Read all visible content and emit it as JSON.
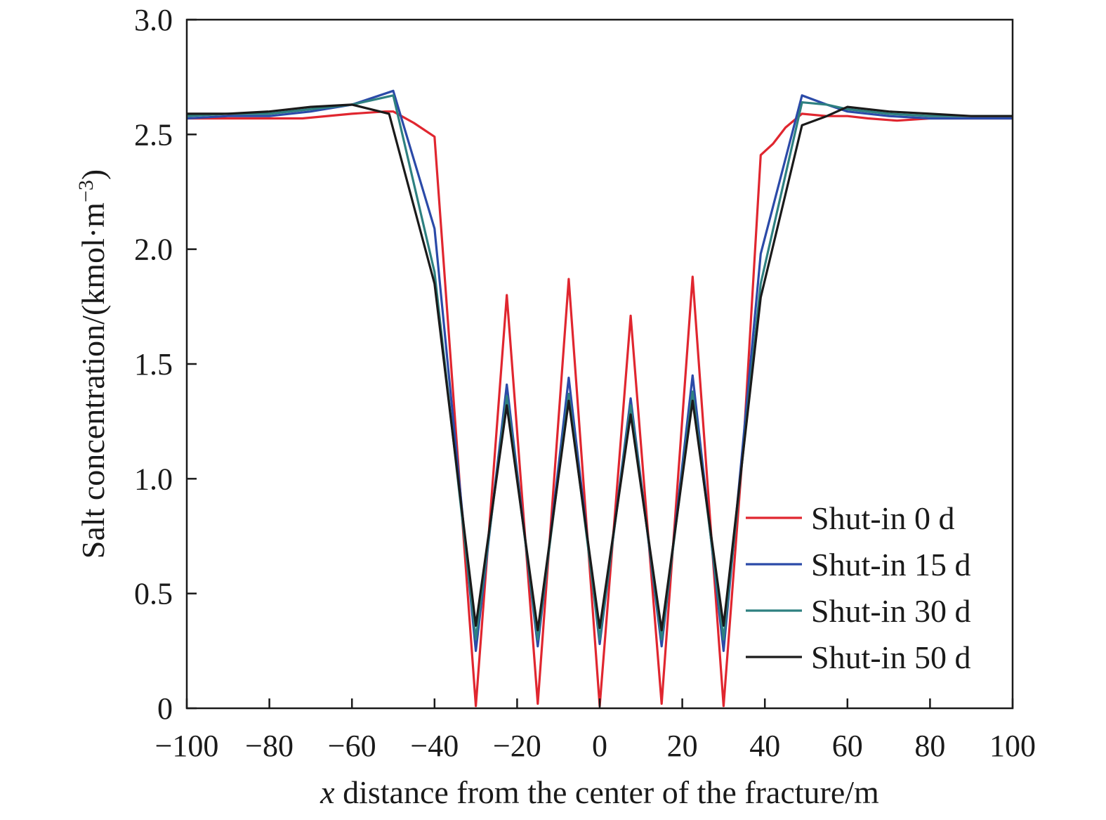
{
  "chart_data": {
    "type": "line",
    "xlabel_var": "x",
    "xlabel_rest": " distance from the center of the fracture/m",
    "ylabel": "Salt concentration/(kmol·m",
    "ylabel_exp": "−3",
    "ylabel_close": ")",
    "xlim": [
      -100,
      100
    ],
    "ylim": [
      0,
      3.0
    ],
    "xticks": [
      -100,
      -80,
      -60,
      -40,
      -20,
      0,
      20,
      40,
      60,
      80,
      100
    ],
    "xtick_labels": [
      "−100",
      "−80",
      "−60",
      "−40",
      "−20",
      "0",
      "20",
      "40",
      "60",
      "80",
      "100"
    ],
    "yticks": [
      0,
      0.5,
      1.0,
      1.5,
      2.0,
      2.5,
      3.0
    ],
    "ytick_labels": [
      "0",
      "0.5",
      "1.0",
      "1.5",
      "2.0",
      "2.5",
      "3.0"
    ],
    "grid": false,
    "legend_position": "bottom-right",
    "series": [
      {
        "name": "Shut-in 0 d",
        "color": "#e0262f",
        "points": [
          [
            -100,
            2.57
          ],
          [
            -90,
            2.57
          ],
          [
            -80,
            2.57
          ],
          [
            -72,
            2.57
          ],
          [
            -60,
            2.59
          ],
          [
            -52,
            2.6
          ],
          [
            -50,
            2.6
          ],
          [
            -45,
            2.55
          ],
          [
            -40,
            2.49
          ],
          [
            -35,
            1.25
          ],
          [
            -30,
            0.01
          ],
          [
            -22.5,
            1.8
          ],
          [
            -15,
            0.02
          ],
          [
            -7.5,
            1.87
          ],
          [
            0,
            0.01
          ],
          [
            7.5,
            1.71
          ],
          [
            15,
            0.02
          ],
          [
            22.5,
            1.88
          ],
          [
            30,
            0.01
          ],
          [
            35,
            1.2
          ],
          [
            39,
            2.41
          ],
          [
            42,
            2.46
          ],
          [
            45,
            2.53
          ],
          [
            49,
            2.59
          ],
          [
            55,
            2.58
          ],
          [
            60,
            2.58
          ],
          [
            65,
            2.57
          ],
          [
            72,
            2.56
          ],
          [
            80,
            2.57
          ],
          [
            90,
            2.57
          ],
          [
            100,
            2.57
          ]
        ]
      },
      {
        "name": "Shut-in 15 d",
        "color": "#2b4aa8",
        "points": [
          [
            -100,
            2.57
          ],
          [
            -90,
            2.58
          ],
          [
            -80,
            2.58
          ],
          [
            -70,
            2.6
          ],
          [
            -60,
            2.63
          ],
          [
            -50,
            2.69
          ],
          [
            -40,
            2.09
          ],
          [
            -30,
            0.25
          ],
          [
            -22.5,
            1.41
          ],
          [
            -15,
            0.27
          ],
          [
            -7.5,
            1.44
          ],
          [
            0,
            0.28
          ],
          [
            7.5,
            1.35
          ],
          [
            15,
            0.27
          ],
          [
            22.5,
            1.45
          ],
          [
            30,
            0.25
          ],
          [
            39,
            1.98
          ],
          [
            49,
            2.67
          ],
          [
            55,
            2.63
          ],
          [
            60,
            2.6
          ],
          [
            70,
            2.58
          ],
          [
            80,
            2.57
          ],
          [
            90,
            2.57
          ],
          [
            100,
            2.57
          ]
        ]
      },
      {
        "name": "Shut-in 30 d",
        "color": "#2e8080",
        "points": [
          [
            -100,
            2.58
          ],
          [
            -90,
            2.59
          ],
          [
            -80,
            2.59
          ],
          [
            -70,
            2.61
          ],
          [
            -60,
            2.63
          ],
          [
            -50,
            2.67
          ],
          [
            -40,
            1.9
          ],
          [
            -30,
            0.3
          ],
          [
            -22.5,
            1.36
          ],
          [
            -15,
            0.3
          ],
          [
            -7.5,
            1.37
          ],
          [
            0,
            0.3
          ],
          [
            7.5,
            1.32
          ],
          [
            15,
            0.3
          ],
          [
            22.5,
            1.38
          ],
          [
            30,
            0.3
          ],
          [
            39,
            1.85
          ],
          [
            49,
            2.64
          ],
          [
            55,
            2.63
          ],
          [
            60,
            2.61
          ],
          [
            70,
            2.59
          ],
          [
            80,
            2.58
          ],
          [
            90,
            2.58
          ],
          [
            100,
            2.58
          ]
        ]
      },
      {
        "name": "Shut-in 50 d",
        "color": "#1a1a1a",
        "points": [
          [
            -100,
            2.59
          ],
          [
            -90,
            2.59
          ],
          [
            -80,
            2.6
          ],
          [
            -70,
            2.62
          ],
          [
            -60,
            2.63
          ],
          [
            -51,
            2.59
          ],
          [
            -40,
            1.85
          ],
          [
            -30,
            0.36
          ],
          [
            -22.5,
            1.32
          ],
          [
            -15,
            0.34
          ],
          [
            -7.5,
            1.34
          ],
          [
            0,
            0.35
          ],
          [
            7.5,
            1.28
          ],
          [
            15,
            0.34
          ],
          [
            22.5,
            1.34
          ],
          [
            30,
            0.36
          ],
          [
            39,
            1.79
          ],
          [
            49,
            2.54
          ],
          [
            55,
            2.58
          ],
          [
            60,
            2.62
          ],
          [
            70,
            2.6
          ],
          [
            80,
            2.59
          ],
          [
            90,
            2.58
          ],
          [
            100,
            2.58
          ]
        ]
      }
    ]
  }
}
